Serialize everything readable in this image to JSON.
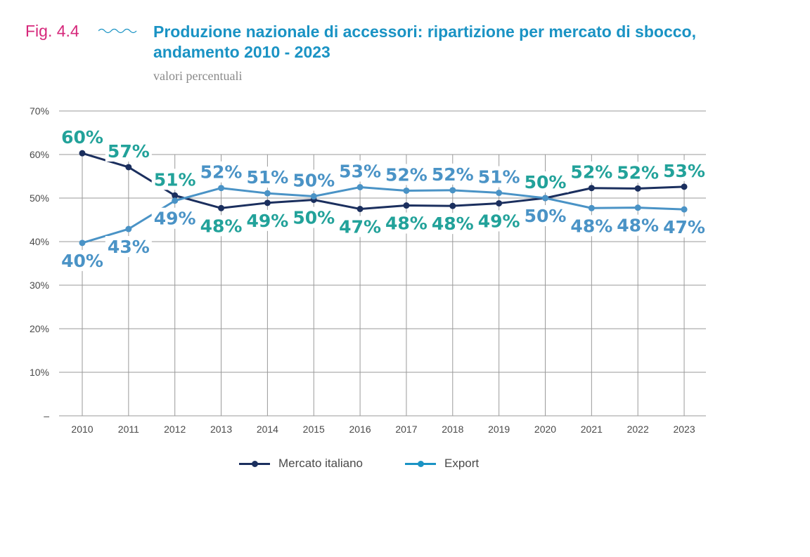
{
  "header": {
    "fig_label": "Fig. 4.4",
    "title": "Produzione nazionale di accessori: ripartizione per mercato di sbocco, andamento 2010 - 2023",
    "subtitle": "valori percentuali"
  },
  "colors": {
    "fig_label": "#d6287b",
    "title": "#1a93c4",
    "mercato_line": "#1b2f5e",
    "export_line": "#4a93c6",
    "label_teal": "#22a29a",
    "label_blue": "#4a93c6",
    "grid": "#9a9a9a"
  },
  "chart_data": {
    "type": "line",
    "categories": [
      "2010",
      "2011",
      "2012",
      "2013",
      "2014",
      "2015",
      "2016",
      "2017",
      "2018",
      "2019",
      "2020",
      "2021",
      "2022",
      "2023"
    ],
    "y_ticks": [
      "–",
      "10%",
      "20%",
      "30%",
      "40%",
      "50%",
      "60%",
      "70%"
    ],
    "ylim": [
      0,
      70
    ],
    "grid": true,
    "legend_position": "bottom",
    "series": [
      {
        "name": "Mercato italiano",
        "color": "#1b2f5e",
        "values": [
          60.3,
          57.1,
          50.6,
          47.7,
          48.9,
          49.6,
          47.5,
          48.3,
          48.2,
          48.8,
          50.0,
          52.3,
          52.2,
          52.6
        ],
        "labels": [
          "60%",
          "57%",
          "51%",
          "48%",
          "49%",
          "50%",
          "47%",
          "48%",
          "48%",
          "49%",
          "50%",
          "52%",
          "52%",
          "53%"
        ]
      },
      {
        "name": "Export",
        "color": "#4a93c6",
        "values": [
          39.7,
          42.9,
          49.4,
          52.3,
          51.1,
          50.4,
          52.5,
          51.7,
          51.8,
          51.2,
          50.0,
          47.7,
          47.8,
          47.4
        ],
        "labels": [
          "40%",
          "43%",
          "49%",
          "52%",
          "51%",
          "50%",
          "53%",
          "52%",
          "52%",
          "51%",
          "50%",
          "48%",
          "48%",
          "47%"
        ]
      }
    ]
  },
  "legend": {
    "items": [
      {
        "label": "Mercato italiano",
        "color": "#1b2f5e"
      },
      {
        "label": "Export",
        "color": "#1a93c4"
      }
    ]
  }
}
